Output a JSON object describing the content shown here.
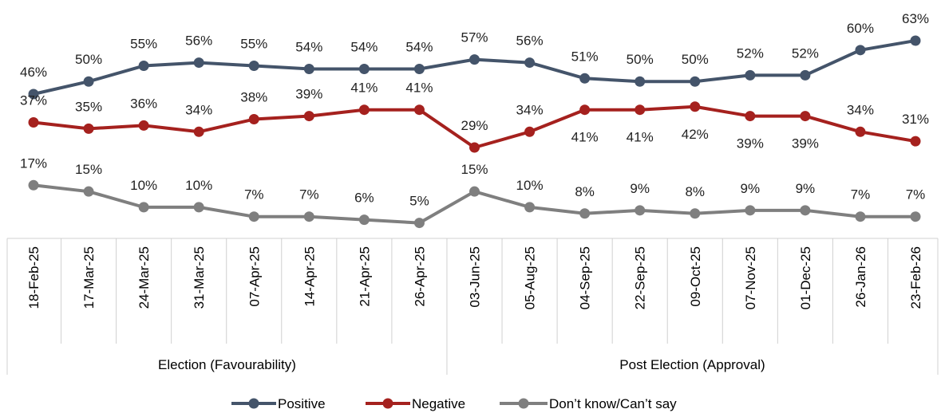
{
  "chart_data": {
    "type": "line",
    "title": "",
    "xlabel": "",
    "ylabel": "",
    "ylim": [
      0,
      70
    ],
    "grid": false,
    "legend_position": "bottom",
    "categories": [
      "18-Feb-25",
      "17-Mar-25",
      "24-Mar-25",
      "31-Mar-25",
      "07-Apr-25",
      "14-Apr-25",
      "21-Apr-25",
      "26-Apr-25",
      "03-Jun-25",
      "05-Aug-25",
      "04-Sep-25",
      "22-Sep-25",
      "09-Oct-25",
      "07-Nov-25",
      "01-Dec-25",
      "26-Jan-26",
      "23-Feb-26"
    ],
    "groups": [
      {
        "label": "Election (Favourability)",
        "count": 8
      },
      {
        "label": "Post Election (Approval)",
        "count": 9
      }
    ],
    "series": [
      {
        "name": "Positive",
        "color": "#44546A",
        "label_suffix": "%",
        "values": [
          46,
          50,
          55,
          56,
          55,
          54,
          54,
          54,
          57,
          56,
          51,
          50,
          50,
          52,
          52,
          60,
          63
        ]
      },
      {
        "name": "Negative",
        "color": "#A5211E",
        "label_suffix": "%",
        "values": [
          37,
          35,
          36,
          34,
          38,
          39,
          41,
          41,
          29,
          34,
          41,
          41,
          42,
          39,
          39,
          34,
          31
        ]
      },
      {
        "name": "Don’t know/Can’t say",
        "color": "#7F7F7F",
        "label_suffix": "%",
        "values": [
          17,
          15,
          10,
          10,
          7,
          7,
          6,
          5,
          15,
          10,
          8,
          9,
          8,
          9,
          9,
          7,
          7
        ]
      }
    ]
  }
}
